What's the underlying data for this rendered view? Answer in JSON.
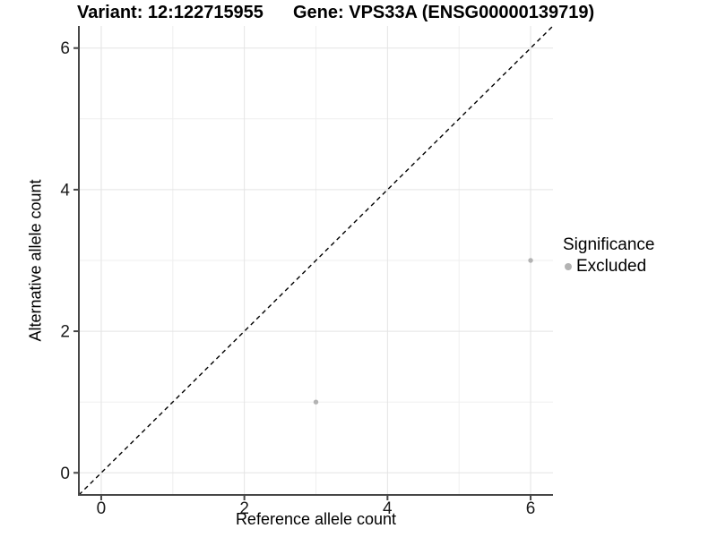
{
  "titles": {
    "left": "Variant: 12:122715955",
    "right": "Gene: VPS33A (ENSG00000139719)"
  },
  "chart_data": {
    "type": "scatter",
    "xlabel": "Reference allele count",
    "ylabel": "Alternative allele count",
    "xlim": [
      -0.3125,
      6.3125
    ],
    "ylim": [
      -0.3125,
      6.3125
    ],
    "x_major_ticks": [
      0,
      2,
      4,
      6
    ],
    "y_major_ticks": [
      0,
      2,
      4,
      6
    ],
    "x_minor_gridlines": [
      1,
      3,
      5
    ],
    "y_minor_gridlines": [
      1,
      3,
      5
    ],
    "grid": true,
    "series": [
      {
        "name": "Excluded",
        "color": "#b3b3b3",
        "points": [
          {
            "x": 3,
            "y": 1
          },
          {
            "x": 6,
            "y": 3
          }
        ]
      }
    ],
    "reference_line": {
      "slope": 1,
      "intercept": 0,
      "style": "dashed",
      "color": "#000000"
    },
    "legend": {
      "title": "Significance",
      "position": "right",
      "entries": [
        {
          "label": "Excluded",
          "color": "#b3b3b3"
        }
      ]
    }
  },
  "colors": {
    "background": "#ffffff",
    "axis_line": "#474747",
    "tick_mark": "#474747",
    "grid_major": "#e4e4e4",
    "grid_minor": "#efefef",
    "point": "#b3b3b3"
  }
}
